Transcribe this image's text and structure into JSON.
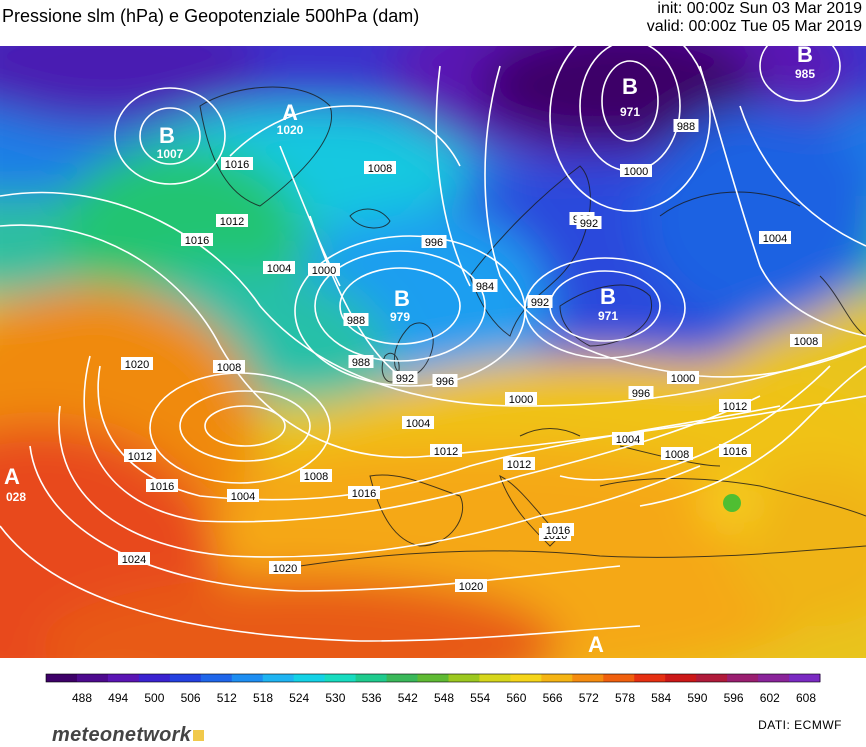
{
  "header": {
    "title": "Pressione slm (hPa) e Geopotenziale 500hPa (dam)",
    "init": "init: 00:00z Sun 03 Mar 2019",
    "valid": "valid: 00:00z Tue 05 Mar 2019"
  },
  "footer": {
    "logo": "meteonetwork",
    "source": "DATI:  ECMWF"
  },
  "colorbar": {
    "labels": [
      "488",
      "494",
      "500",
      "506",
      "512",
      "518",
      "524",
      "530",
      "536",
      "542",
      "548",
      "554",
      "560",
      "566",
      "572",
      "578",
      "584",
      "590",
      "596",
      "602",
      "608"
    ],
    "colors": [
      "#3d0068",
      "#4d0a8e",
      "#5a14b4",
      "#3a22d0",
      "#2440e0",
      "#1f66ea",
      "#1e8ef2",
      "#1fb4f2",
      "#14d2e6",
      "#18dcc0",
      "#1fcb8e",
      "#3ab85a",
      "#5fba34",
      "#9cc820",
      "#d6d61c",
      "#f5d51a",
      "#f5b414",
      "#f58c10",
      "#f0600e",
      "#e63012",
      "#cc1818",
      "#b01a3a",
      "#9a1e70",
      "#8a249a",
      "#7a2ac2"
    ]
  },
  "map_labels": {
    "pressure_centers": [
      {
        "letter": "B",
        "value": "1007"
      },
      {
        "letter": "A",
        "value": "1020"
      },
      {
        "letter": "B",
        "value": "971"
      },
      {
        "letter": "B",
        "value": "985"
      },
      {
        "letter": "B",
        "value": "979"
      },
      {
        "letter": "B",
        "value": "971"
      },
      {
        "letter": "A",
        "value": "028"
      },
      {
        "letter": "A",
        "value": ""
      }
    ],
    "isobar_labels": [
      "1016",
      "1012",
      "1008",
      "1016",
      "1004",
      "1000",
      "996",
      "984",
      "992",
      "988",
      "988",
      "992",
      "996",
      "1008",
      "1000",
      "1004",
      "996",
      "1000",
      "1004",
      "1008",
      "1012",
      "1016",
      "1008",
      "1004",
      "1012",
      "1016",
      "1012",
      "1016",
      "1020",
      "1024",
      "1020",
      "1016",
      "1020",
      "992",
      "988",
      "992",
      "1000",
      "1004",
      "1008",
      "1012",
      "1016"
    ]
  }
}
